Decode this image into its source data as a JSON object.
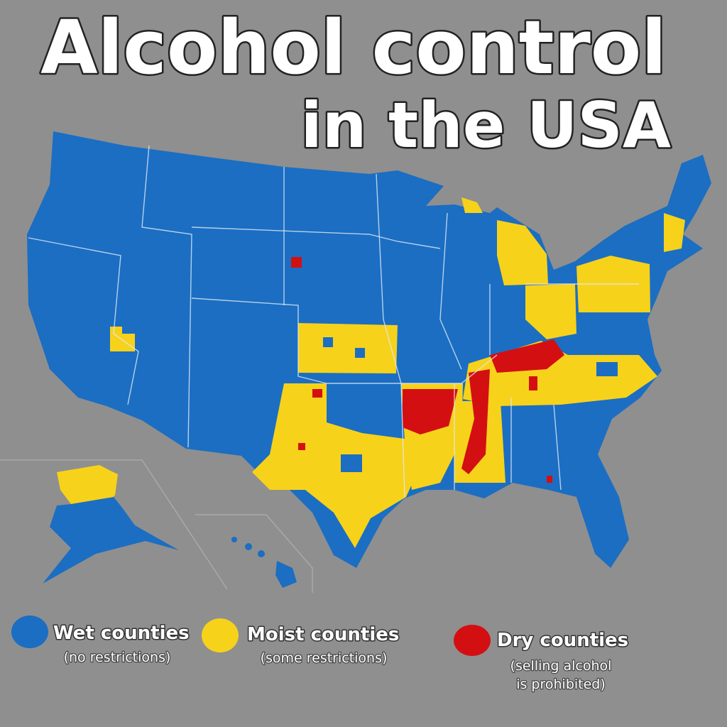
{
  "title": {
    "line1": "Alcohol control",
    "line2": "in the USA"
  },
  "legend": [
    {
      "label": "Wet counties",
      "note": [
        "(no restrictions)"
      ],
      "color": "#1b6ec2"
    },
    {
      "label": "Moist counties",
      "note": [
        "(some restrictions)"
      ],
      "color": "#f7d21b"
    },
    {
      "label": "Dry counties",
      "note": [
        "(selling alcohol",
        "is prohibited)"
      ],
      "color": "#d40f12"
    }
  ]
}
